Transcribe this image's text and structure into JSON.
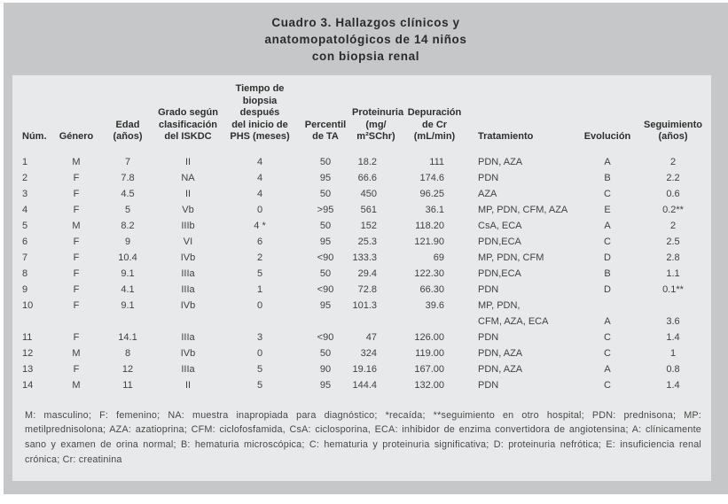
{
  "title": "Cuadro 3. Hallazgos clínicos y\nanatomopatológicos de 14 niños\ncon biopsia renal",
  "colors": {
    "outer_bg": "#c5c7c9",
    "panel_bg": "#e8e9ea",
    "text": "#414141"
  },
  "table": {
    "column_keys": [
      "num",
      "genero",
      "edad",
      "grado",
      "tiempo",
      "percentil",
      "proteinuria",
      "depuracion",
      "tratamiento",
      "evolucion",
      "seguimiento"
    ],
    "headers": {
      "num": "Núm.",
      "genero": "Género",
      "edad": "Edad\n(años)",
      "grado": "Grado según\nclasificación\ndel ISKDC",
      "tiempo": "Tiempo de\nbiopsia\ndespués\ndel inicio de\nPHS (meses)",
      "percentil": "Percentil\nde TA",
      "proteinuria": "Proteinuria\n(mg/\nm²SChr)",
      "depuracion": "Depuración\nde Cr\n(mL/min)",
      "tratamiento": "Tratamiento",
      "evolucion": "Evolución",
      "seguimiento": "Seguimiento\n(años)"
    },
    "rows": [
      {
        "num": "1",
        "genero": "M",
        "edad": "7",
        "grado": "II",
        "tiempo": "4",
        "percentil": "50",
        "proteinuria": "18.2",
        "depuracion": "111",
        "tratamiento": "PDN, AZA",
        "evolucion": "A",
        "seguimiento": "2"
      },
      {
        "num": "2",
        "genero": "F",
        "edad": "7.8",
        "grado": "NA",
        "tiempo": "4",
        "percentil": "95",
        "proteinuria": "66.6",
        "depuracion": "174.6",
        "tratamiento": "PDN",
        "evolucion": "B",
        "seguimiento": "2.2"
      },
      {
        "num": "3",
        "genero": "F",
        "edad": "4.5",
        "grado": "II",
        "tiempo": "4",
        "percentil": "50",
        "proteinuria": "450",
        "depuracion": "96.25",
        "tratamiento": "AZA",
        "evolucion": "C",
        "seguimiento": "0.6"
      },
      {
        "num": "4",
        "genero": "F",
        "edad": "5",
        "grado": "Vb",
        "tiempo": "0",
        "percentil": ">95",
        "proteinuria": "561",
        "depuracion": "36.1",
        "tratamiento": "MP, PDN, CFM, AZA",
        "evolucion": "E",
        "seguimiento": "0.2**"
      },
      {
        "num": "5",
        "genero": "M",
        "edad": "8.2",
        "grado": "IIIb",
        "tiempo": "4 *",
        "percentil": "50",
        "proteinuria": "152",
        "depuracion": "118.20",
        "tratamiento": "CsA, ECA",
        "evolucion": "A",
        "seguimiento": "2"
      },
      {
        "num": "6",
        "genero": "F",
        "edad": "9",
        "grado": "VI",
        "tiempo": "6",
        "percentil": "95",
        "proteinuria": "25.3",
        "depuracion": "121.90",
        "tratamiento": "PDN,ECA",
        "evolucion": "C",
        "seguimiento": "2.5"
      },
      {
        "num": "7",
        "genero": "F",
        "edad": "10.4",
        "grado": "IVb",
        "tiempo": "2",
        "percentil": "<90",
        "proteinuria": "133.3",
        "depuracion": "69",
        "tratamiento": "MP, PDN, CFM",
        "evolucion": "D",
        "seguimiento": "2.8"
      },
      {
        "num": "8",
        "genero": "F",
        "edad": "9.1",
        "grado": "IIIa",
        "tiempo": "5",
        "percentil": "50",
        "proteinuria": "29.4",
        "depuracion": "122.30",
        "tratamiento": "PDN,ECA",
        "evolucion": "B",
        "seguimiento": "1.1"
      },
      {
        "num": "9",
        "genero": "F",
        "edad": "4.1",
        "grado": "IIIa",
        "tiempo": "1",
        "percentil": "<90",
        "proteinuria": "72.8",
        "depuracion": "66.30",
        "tratamiento": "PDN",
        "evolucion": "D",
        "seguimiento": "0.1**"
      },
      {
        "num": "10",
        "genero": "F",
        "edad": "9.1",
        "grado": "IVb",
        "tiempo": "0",
        "percentil": "95",
        "proteinuria": "101.3",
        "depuracion": "39.6",
        "tratamiento": "MP, PDN,\nCFM, AZA, ECA",
        "evolucion": "A",
        "seguimiento": "3.6"
      },
      {
        "num": "11",
        "genero": "F",
        "edad": "14.1",
        "grado": "IIIa",
        "tiempo": "3",
        "percentil": "<90",
        "proteinuria": "47",
        "depuracion": "126.00",
        "tratamiento": "PDN",
        "evolucion": "C",
        "seguimiento": "1.4"
      },
      {
        "num": "12",
        "genero": "M",
        "edad": "8",
        "grado": "IVb",
        "tiempo": "0",
        "percentil": "50",
        "proteinuria": "324",
        "depuracion": "119.00",
        "tratamiento": "PDN, AZA",
        "evolucion": "C",
        "seguimiento": "1"
      },
      {
        "num": "13",
        "genero": "F",
        "edad": "12",
        "grado": "IIIa",
        "tiempo": "5",
        "percentil": "90",
        "proteinuria": "19.16",
        "depuracion": "167.00",
        "tratamiento": "PDN, AZA",
        "evolucion": "A",
        "seguimiento": "0.8"
      },
      {
        "num": "14",
        "genero": "M",
        "edad": "11",
        "grado": "II",
        "tiempo": "5",
        "percentil": "95",
        "proteinuria": "144.4",
        "depuracion": "132.00",
        "tratamiento": "PDN",
        "evolucion": "C",
        "seguimiento": "1.4"
      }
    ]
  },
  "footnote": "M: masculino; F: femenino; NA: muestra inapropiada para diagnóstico; *recaída; **seguimiento en otro hospital; PDN: prednisona; MP: metilprednisolona; AZA: azatioprina; CFM: ciclofosfamida, CsA: ciclosporina, ECA: inhibidor de enzima convertidora de angiotensina; A: clínicamente sano y examen de orina normal; B: hematuria microscópica; C: hematuria y proteinuria significativa; D: proteinuria nefrótica; E: insuficiencia renal crónica; Cr: creatinina"
}
